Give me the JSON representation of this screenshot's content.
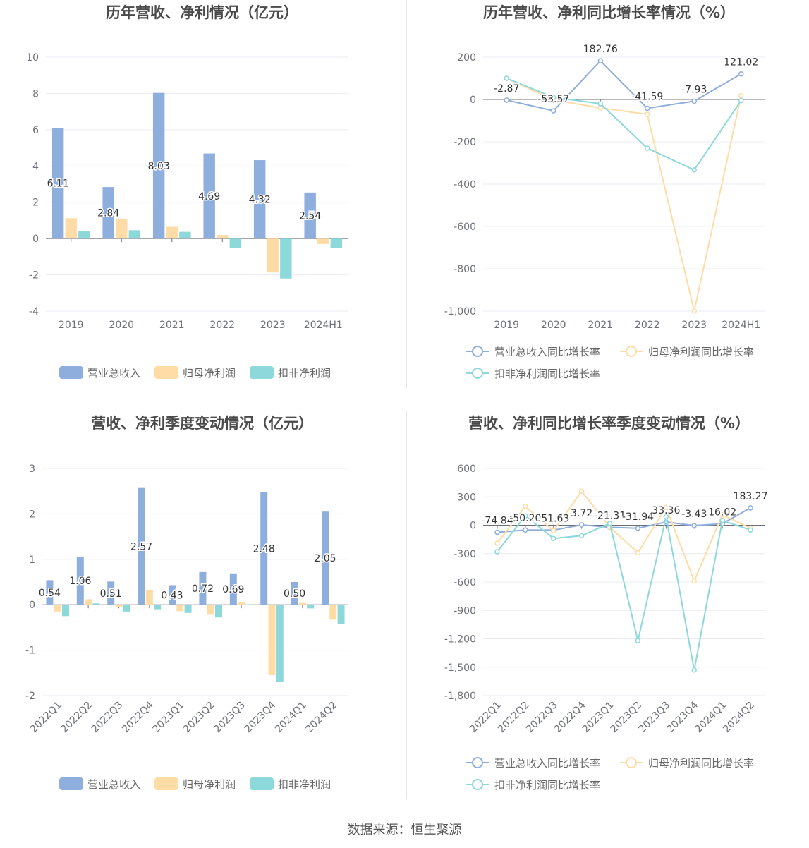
{
  "source": "数据来源：恒生聚源",
  "colors": {
    "revenue": "#8eaedd",
    "net_profit": "#ffdca6",
    "deducted": "#8dd8db",
    "gridline": "#e9ecf3",
    "axis": "#6e7079"
  },
  "chart_data": [
    {
      "id": "annual_values",
      "type": "bar",
      "title": "历年营收、净利情况（亿元）",
      "categories": [
        "2019",
        "2020",
        "2021",
        "2022",
        "2023",
        "2024H1"
      ],
      "series": [
        {
          "name": "营业总收入",
          "values": [
            6.11,
            2.84,
            8.03,
            4.69,
            4.32,
            2.54
          ],
          "labels": [
            "6.11",
            "2.84",
            "8.03",
            "4.69",
            "4.32",
            "2.54"
          ]
        },
        {
          "name": "归母净利润",
          "values": [
            1.12,
            1.1,
            0.65,
            0.2,
            -1.87,
            -0.3
          ]
        },
        {
          "name": "扣非净利润",
          "values": [
            0.42,
            0.46,
            0.37,
            -0.5,
            -2.2,
            -0.5
          ]
        }
      ],
      "ylim": [
        -4,
        10
      ],
      "yticks": [
        -4,
        -2,
        0,
        2,
        4,
        6,
        8,
        10
      ],
      "ytick_labels": [
        "-4",
        "-2",
        "0",
        "2",
        "4",
        "6",
        "8",
        "10"
      ],
      "grid": true,
      "legend": "bottom"
    },
    {
      "id": "annual_growth",
      "type": "line",
      "title": "历年营收、净利同比增长率情况（%）",
      "categories": [
        "2019",
        "2020",
        "2021",
        "2022",
        "2023",
        "2024H1"
      ],
      "series": [
        {
          "name": "营业总收入同比增长率",
          "values": [
            -2.87,
            -53.57,
            182.76,
            -41.59,
            -7.93,
            121.02
          ],
          "labels": [
            "-2.87",
            "-53.57",
            "182.76",
            "-41.59",
            "-7.93",
            "121.02"
          ]
        },
        {
          "name": "归母净利润同比增长率",
          "values": [
            100,
            -2,
            -40,
            -70,
            -1000,
            18
          ]
        },
        {
          "name": "扣非净利润同比增长率",
          "values": [
            100,
            10,
            -20,
            -230,
            -333,
            -5
          ]
        }
      ],
      "ylim": [
        -1000,
        200
      ],
      "yticks": [
        -1000,
        -800,
        -600,
        -400,
        -200,
        0,
        200
      ],
      "ytick_labels": [
        "-1,000",
        "-800",
        "-600",
        "-400",
        "-200",
        "0",
        "200"
      ],
      "grid": true,
      "legend": "bottom"
    },
    {
      "id": "quarterly_values",
      "type": "bar",
      "title": "营收、净利季度变动情况（亿元）",
      "categories": [
        "2022Q1",
        "2022Q2",
        "2022Q3",
        "2022Q4",
        "2023Q1",
        "2023Q2",
        "2023Q3",
        "2023Q4",
        "2024Q1",
        "2024Q2"
      ],
      "series": [
        {
          "name": "营业总收入",
          "values": [
            0.54,
            1.06,
            0.51,
            2.57,
            0.43,
            0.72,
            0.69,
            2.48,
            0.5,
            2.05
          ],
          "labels": [
            "0.54",
            "1.06",
            "0.51",
            "2.57",
            "0.43",
            "0.72",
            "0.69",
            "2.48",
            "0.50",
            "2.05"
          ]
        },
        {
          "name": "归母净利润",
          "values": [
            -0.15,
            0.12,
            -0.05,
            0.32,
            -0.14,
            -0.22,
            0.06,
            -1.55,
            0.04,
            -0.33
          ]
        },
        {
          "name": "扣非净利润",
          "values": [
            -0.25,
            0.03,
            -0.15,
            -0.1,
            -0.18,
            -0.28,
            0.01,
            -1.7,
            -0.08,
            -0.42
          ]
        }
      ],
      "ylim": [
        -2,
        3
      ],
      "yticks": [
        -2,
        -1,
        0,
        1,
        2,
        3
      ],
      "ytick_labels": [
        "-2",
        "-1",
        "0",
        "1",
        "2",
        "3"
      ],
      "grid": true,
      "legend": "bottom"
    },
    {
      "id": "quarterly_growth",
      "type": "line",
      "title": "营收、净利同比增长率季度变动情况（%）",
      "categories": [
        "2022Q1",
        "2022Q2",
        "2022Q3",
        "2022Q4",
        "2023Q1",
        "2023Q2",
        "2023Q3",
        "2023Q4",
        "2024Q1",
        "2024Q2"
      ],
      "series": [
        {
          "name": "营业总收入同比增长率",
          "values": [
            -74.84,
            -50.2,
            -51.63,
            3.72,
            -21.31,
            -31.94,
            33.36,
            -3.43,
            16.02,
            183.27
          ],
          "labels": [
            "-74.84",
            "-50.20",
            "-51.63",
            "3.72",
            "-21.31",
            "-31.94",
            "33.36",
            "-3.43",
            "16.02",
            "183.27"
          ]
        },
        {
          "name": "归母净利润同比增长率",
          "values": [
            -190,
            200,
            -60,
            360,
            -20,
            -290,
            190,
            -590,
            110,
            -30
          ]
        },
        {
          "name": "扣非净利润同比增长率",
          "values": [
            -280,
            100,
            -140,
            -110,
            20,
            -1220,
            90,
            -1530,
            50,
            -50
          ]
        }
      ],
      "ylim": [
        -1800,
        600
      ],
      "yticks": [
        -1800,
        -1500,
        -1200,
        -900,
        -600,
        -300,
        0,
        300,
        600
      ],
      "ytick_labels": [
        "-1,800",
        "-1,500",
        "-1,200",
        "-900",
        "-600",
        "-300",
        "0",
        "300",
        "600"
      ],
      "grid": true,
      "legend": "bottom"
    }
  ]
}
